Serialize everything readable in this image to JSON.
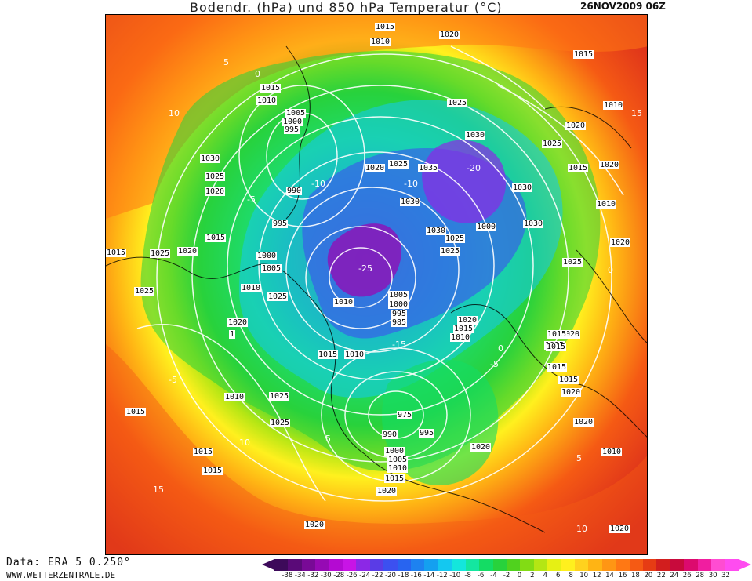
{
  "header": {
    "title": "Bodendr. (hPa) und 850 hPa Temperatur (°C)",
    "date": "26NOV2009 06Z"
  },
  "footer": {
    "data_source": "Data: ERA 5 0.250°",
    "website": "WWW.WETTERZENTRALE.DE"
  },
  "legend": {
    "ticks": [
      "-38",
      "-34",
      "-32",
      "-30",
      "-28",
      "-26",
      "-24",
      "-22",
      "-20",
      "-18",
      "-16",
      "-14",
      "-12",
      "-10",
      "-8",
      "-6",
      "-4",
      "-2",
      "0",
      "2",
      "4",
      "6",
      "8",
      "10",
      "12",
      "14",
      "16",
      "18",
      "20",
      "22",
      "24",
      "26",
      "28",
      "30",
      "32"
    ],
    "colors": [
      "#3d0a5a",
      "#5a0a78",
      "#780a96",
      "#960ab4",
      "#b40ad2",
      "#c814e6",
      "#8c28e6",
      "#5a3ce6",
      "#3c50f0",
      "#2864f0",
      "#1e82f0",
      "#14a0f0",
      "#14c8f0",
      "#14e6dc",
      "#14e6a0",
      "#14dc64",
      "#28d23c",
      "#50d21e",
      "#82dc14",
      "#b4e614",
      "#e6f014",
      "#fff01e",
      "#ffd21e",
      "#ffb414",
      "#ff9614",
      "#ff7814",
      "#f55a14",
      "#e63c14",
      "#d21e1e",
      "#c80a3c",
      "#dc0a6e",
      "#f01ea0",
      "#ff4cd2",
      "#ff4cf0"
    ]
  },
  "map": {
    "pressure_labels": [
      {
        "text": "1015"
      },
      {
        "text": "1020"
      },
      {
        "text": "1010"
      },
      {
        "text": "1015"
      },
      {
        "text": "1015"
      },
      {
        "text": "1010"
      },
      {
        "text": "1005"
      },
      {
        "text": "1000"
      },
      {
        "text": "995"
      },
      {
        "text": "1030"
      },
      {
        "text": "1025"
      },
      {
        "text": "1020"
      },
      {
        "text": "990"
      },
      {
        "text": "995"
      },
      {
        "text": "1025"
      },
      {
        "text": "1020"
      },
      {
        "text": "1035"
      },
      {
        "text": "1030"
      },
      {
        "text": "1025"
      },
      {
        "text": "1030"
      },
      {
        "text": "1020"
      },
      {
        "text": "1010"
      },
      {
        "text": "1025"
      },
      {
        "text": "1015"
      },
      {
        "text": "1020"
      },
      {
        "text": "1030"
      },
      {
        "text": "1030"
      },
      {
        "text": "1010"
      },
      {
        "text": "1020"
      },
      {
        "text": "1015"
      },
      {
        "text": "1025"
      },
      {
        "text": "1025"
      },
      {
        "text": "1020"
      },
      {
        "text": "1015"
      },
      {
        "text": "1000"
      },
      {
        "text": "1005"
      },
      {
        "text": "1010"
      },
      {
        "text": "1025"
      },
      {
        "text": "1025"
      },
      {
        "text": "1010"
      },
      {
        "text": "1010"
      },
      {
        "text": "1005"
      },
      {
        "text": "1000"
      },
      {
        "text": "995"
      },
      {
        "text": "985"
      },
      {
        "text": "1020"
      },
      {
        "text": "1015"
      },
      {
        "text": "1010"
      },
      {
        "text": "1020"
      },
      {
        "text": "1015"
      },
      {
        "text": "1015"
      },
      {
        "text": "1010"
      },
      {
        "text": "1025"
      },
      {
        "text": "1020"
      },
      {
        "text": "1015"
      },
      {
        "text": "1015"
      },
      {
        "text": "1015"
      },
      {
        "text": "1015"
      },
      {
        "text": "1010"
      },
      {
        "text": "1025"
      },
      {
        "text": "975"
      },
      {
        "text": "990"
      },
      {
        "text": "995"
      },
      {
        "text": "1020"
      },
      {
        "text": "1020"
      },
      {
        "text": "1000"
      },
      {
        "text": "1005"
      },
      {
        "text": "1010"
      },
      {
        "text": "1015"
      },
      {
        "text": "1020"
      },
      {
        "text": "1015"
      },
      {
        "text": "1015"
      },
      {
        "text": "1015"
      },
      {
        "text": "1020"
      },
      {
        "text": "1020"
      },
      {
        "text": "1025"
      },
      {
        "text": "1025"
      },
      {
        "text": "1020"
      },
      {
        "text": "1030"
      },
      {
        "text": "1000"
      },
      {
        "text": "1"
      }
    ],
    "temperature_labels": [
      {
        "text": "10"
      },
      {
        "text": "5"
      },
      {
        "text": "0"
      },
      {
        "text": "-5"
      },
      {
        "text": "-10"
      },
      {
        "text": "-15"
      },
      {
        "text": "-20"
      },
      {
        "text": "-25"
      },
      {
        "text": "-5"
      },
      {
        "text": "0"
      },
      {
        "text": "5"
      },
      {
        "text": "10"
      },
      {
        "text": "15"
      },
      {
        "text": "-5"
      },
      {
        "text": "0"
      },
      {
        "text": "5"
      },
      {
        "text": "10"
      },
      {
        "text": "15"
      },
      {
        "text": "-10"
      }
    ]
  }
}
